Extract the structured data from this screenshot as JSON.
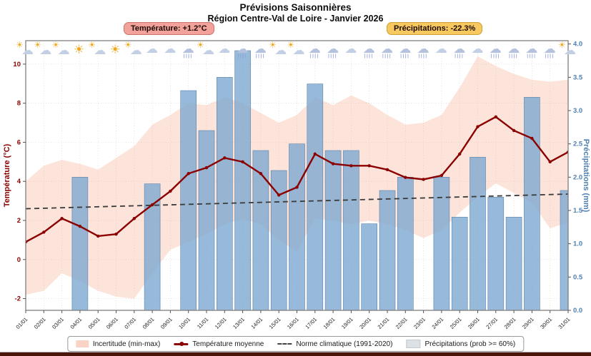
{
  "title": "Prévisions Saisonnières",
  "subtitle": "Région Centre-Val de Loire - Janvier 2026",
  "badges": {
    "temperature": "Température: +1.2°C",
    "precipitation": "Précipitations: -22.3%"
  },
  "legend": {
    "incertitude": "Incertitude (min-max)",
    "moyenne": "Température moyenne",
    "norme": "Norme climatique (1991-2020)",
    "precipitations": "Précipitations (prob >= 60%)"
  },
  "chart_data": {
    "type": "combo-bar-line-band",
    "x_labels": [
      "01/01",
      "02/01",
      "03/01",
      "04/01",
      "05/01",
      "06/01",
      "07/01",
      "08/01",
      "09/01",
      "10/01",
      "11/01",
      "12/01",
      "13/01",
      "14/01",
      "15/01",
      "16/01",
      "17/01",
      "18/01",
      "19/01",
      "20/01",
      "21/01",
      "22/01",
      "23/01",
      "24/01",
      "25/01",
      "26/01",
      "27/01",
      "28/01",
      "29/01",
      "30/01",
      "31/01"
    ],
    "left_axis": {
      "label": "Température (°C)",
      "color": "#8b0000",
      "min": -2.6,
      "max": 11.2,
      "ticks": [
        -2,
        0,
        2,
        4,
        6,
        8,
        10
      ]
    },
    "right_axis": {
      "label": "Précipitations (mm)",
      "color": "#4f81b5",
      "min": 0,
      "max": 4.05,
      "tick_labels": [
        "0.0",
        "0.5",
        "1.0",
        "1.5",
        "2.0",
        "2.5",
        "3.0",
        "3.5",
        "4.0"
      ],
      "tick_values": [
        0,
        0.5,
        1.0,
        1.5,
        2.0,
        2.5,
        3.0,
        3.5,
        4.0
      ]
    },
    "temperature_mean": {
      "name": "Température moyenne",
      "color": "#8b0000",
      "values": [
        0.9,
        1.4,
        2.1,
        1.7,
        1.2,
        1.3,
        2.1,
        2.8,
        3.5,
        4.4,
        4.7,
        5.2,
        5.0,
        4.4,
        3.3,
        3.7,
        5.4,
        4.9,
        4.8,
        4.8,
        4.6,
        4.2,
        4.1,
        4.3,
        5.4,
        6.8,
        7.3,
        6.6,
        6.2,
        5.0,
        5.5
      ]
    },
    "uncertainty_band": {
      "name": "Incertitude (min-max)",
      "color": "#f5ab8c",
      "min": [
        -1.8,
        -1.6,
        -0.7,
        -1.1,
        -1.6,
        -1.9,
        -2.0,
        -0.7,
        0.5,
        0.9,
        1.3,
        1.8,
        2.1,
        1.8,
        1.0,
        0.4,
        2.1,
        2.0,
        1.8,
        2.0,
        1.8,
        1.5,
        1.1,
        1.5,
        2.4,
        3.2,
        3.9,
        3.4,
        2.9,
        1.6,
        1.9
      ],
      "max": [
        4.0,
        4.8,
        5.1,
        4.9,
        4.6,
        5.2,
        5.8,
        6.9,
        7.4,
        8.0,
        7.9,
        8.3,
        8.0,
        7.5,
        7.0,
        7.4,
        8.3,
        7.9,
        8.4,
        8.0,
        7.4,
        6.9,
        7.0,
        7.4,
        8.8,
        10.4,
        9.9,
        9.5,
        9.2,
        9.1,
        9.2
      ]
    },
    "climate_norm": {
      "name": "Norme climatique (1991-2020)",
      "color": "#3a3a3a",
      "day1_value": 2.6,
      "day31_value": 3.35
    },
    "precipitation_mm": {
      "name": "Précipitations (prob >= 60%)",
      "color": "#7aa7cf",
      "values": [
        null,
        null,
        null,
        2.0,
        null,
        null,
        null,
        1.9,
        null,
        3.3,
        2.7,
        3.5,
        3.9,
        2.4,
        2.1,
        2.5,
        3.4,
        2.4,
        2.4,
        1.3,
        1.8,
        2.0,
        null,
        2.0,
        1.4,
        2.3,
        1.7,
        1.4,
        3.2,
        null,
        1.8
      ]
    },
    "weather_icons": [
      "partly-cloudy",
      "partly-cloudy",
      "partly-cloudy",
      "sunny",
      "partly-cloudy",
      "sunny",
      "partly-cloudy",
      "cloudy",
      "cloudy",
      "rain",
      "partly-cloudy",
      "cloudy",
      "rain",
      "rain",
      "partly-cloudy",
      "partly-cloudy",
      "rain",
      "rain",
      "cloudy",
      "rain",
      "rain",
      "rain",
      "rain",
      "cloudy",
      "rain",
      "cloudy",
      "rain",
      "rain",
      "rain",
      "rain",
      "partly-cloudy"
    ],
    "grid": "dotted"
  }
}
